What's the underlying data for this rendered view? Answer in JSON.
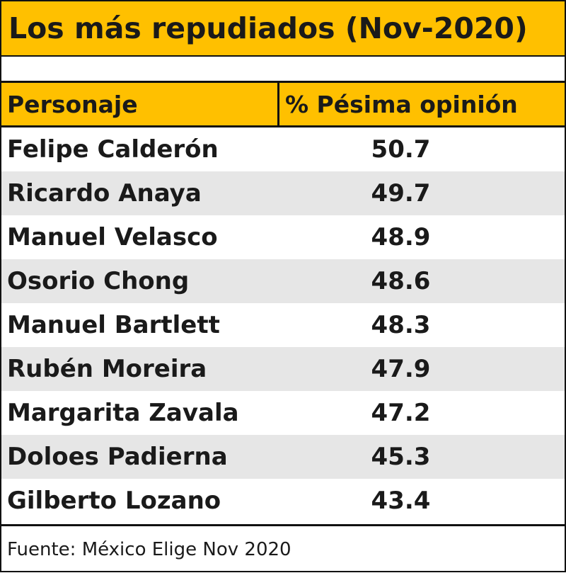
{
  "chart_data": {
    "type": "table",
    "title": "Los más repudiados (Nov-2020)",
    "columns": [
      "Personaje",
      "% Pésima opinión"
    ],
    "rows": [
      {
        "name": "Felipe Calderón",
        "value": "50.7"
      },
      {
        "name": "Ricardo Anaya",
        "value": "49.7"
      },
      {
        "name": "Manuel Velasco",
        "value": "48.9"
      },
      {
        "name": "Osorio Chong",
        "value": "48.6"
      },
      {
        "name": "Manuel Bartlett",
        "value": "48.3"
      },
      {
        "name": "Rubén Moreira",
        "value": "47.9"
      },
      {
        "name": "Margarita Zavala",
        "value": "47.2"
      },
      {
        "name": "Doloes Padierna",
        "value": "45.3"
      },
      {
        "name": "Gilberto Lozano",
        "value": "43.4"
      }
    ],
    "source": "Fuente: México Elige Nov 2020"
  },
  "colors": {
    "header_fill": "#ffc000",
    "stripe_fill": "#e6e6e6",
    "border": "#111111"
  }
}
